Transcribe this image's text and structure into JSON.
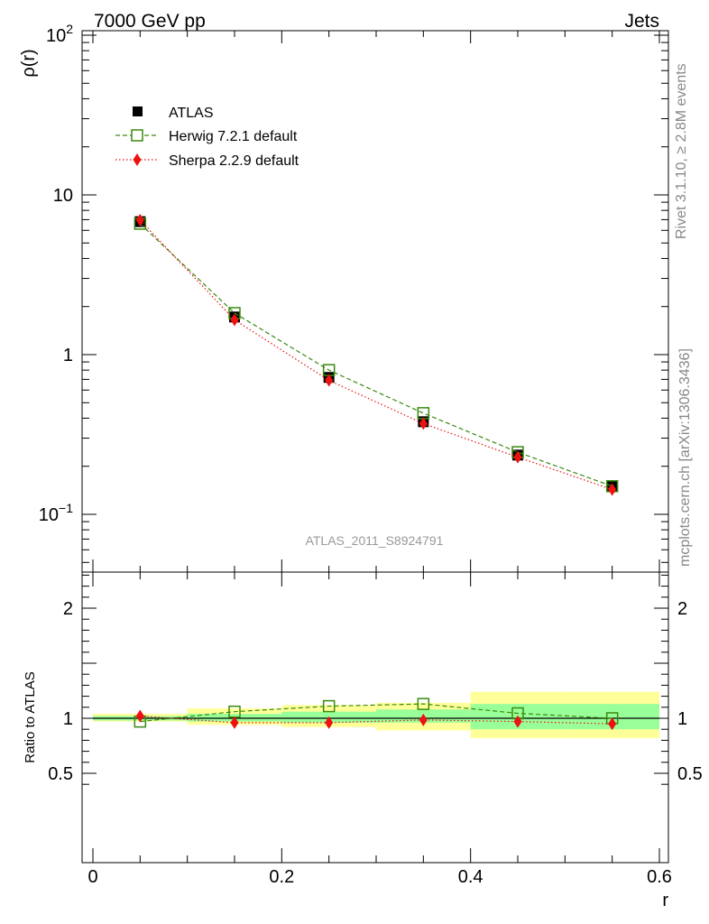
{
  "header": {
    "left_title": "7000 GeV pp",
    "right_title": "Jets"
  },
  "side_text": {
    "rivet": "Rivet 3.1.10, ≥ 2.8M events",
    "mcplots": "mcplots.cern.ch [arXiv:1306.3436]"
  },
  "analysis_label": "ATLAS_2011_S8924791",
  "colors": {
    "atlas": "#000000",
    "herwig": "#3a8a0f",
    "sherpa": "#ee1111",
    "band_inner": "#99ff99",
    "band_outer": "#ffff99"
  },
  "chart_data": [
    {
      "type": "scatter",
      "ylabel": "ρ(r)",
      "xlabel": "",
      "yscale": "log",
      "ylim": [
        0.045,
        120
      ],
      "xlim": [
        -0.01,
        0.6
      ],
      "yticks": [
        {
          "value": 100,
          "base": "10",
          "exp": "2"
        },
        {
          "value": 10,
          "base": "10",
          "exp": ""
        },
        {
          "value": 1,
          "base": "1",
          "exp": ""
        },
        {
          "value": 0.1,
          "base": "10",
          "exp": "−1"
        }
      ],
      "legend_position": "top-left",
      "x": [
        0.05,
        0.15,
        0.25,
        0.35,
        0.45,
        0.55
      ],
      "series": [
        {
          "name": "ATLAS",
          "marker": "filled-square",
          "line": "none",
          "values": [
            6.8,
            1.72,
            0.72,
            0.38,
            0.235,
            0.15
          ]
        },
        {
          "name": "Herwig 7.2.1 default",
          "marker": "open-square",
          "line": "dashed",
          "values": [
            6.6,
            1.82,
            0.8,
            0.43,
            0.245,
            0.15
          ]
        },
        {
          "name": "Sherpa 2.2.9 default",
          "marker": "diamond",
          "line": "dotted",
          "values": [
            6.95,
            1.65,
            0.69,
            0.37,
            0.228,
            0.143
          ]
        }
      ]
    },
    {
      "type": "scatter",
      "ylabel": "Ratio to ATLAS",
      "xlabel": "r",
      "ylim": [
        0.375,
        2.4
      ],
      "yticks": [
        {
          "value": 2,
          "label": "2"
        },
        {
          "value": 1,
          "label": "1"
        },
        {
          "value": 0.5,
          "label": "0.5"
        }
      ],
      "xticks": [
        {
          "value": 0,
          "label": "0"
        },
        {
          "value": 0.2,
          "label": "0.2"
        },
        {
          "value": 0.4,
          "label": "0.4"
        },
        {
          "value": 0.6,
          "label": "0.6"
        }
      ],
      "x": [
        0.05,
        0.15,
        0.25,
        0.35,
        0.45,
        0.55
      ],
      "bin_edges": [
        0,
        0.1,
        0.2,
        0.3,
        0.4,
        0.5,
        0.6
      ],
      "bands": {
        "inner": [
          [
            0.98,
            1.02
          ],
          [
            0.97,
            1.04
          ],
          [
            0.96,
            1.06
          ],
          [
            0.96,
            1.08
          ],
          [
            0.9,
            1.13
          ],
          [
            0.9,
            1.13
          ]
        ],
        "outer": [
          [
            0.97,
            1.04
          ],
          [
            0.94,
            1.09
          ],
          [
            0.92,
            1.12
          ],
          [
            0.89,
            1.14
          ],
          [
            0.82,
            1.24
          ],
          [
            0.82,
            1.24
          ]
        ]
      },
      "series": [
        {
          "name": "Herwig 7.2.1 default",
          "marker": "open-square",
          "line": "dashed",
          "values": [
            0.97,
            1.06,
            1.11,
            1.13,
            1.045,
            1.0
          ]
        },
        {
          "name": "Sherpa 2.2.9 default",
          "marker": "diamond",
          "line": "dotted",
          "values": [
            1.02,
            0.96,
            0.96,
            0.985,
            0.97,
            0.95
          ]
        }
      ]
    }
  ]
}
